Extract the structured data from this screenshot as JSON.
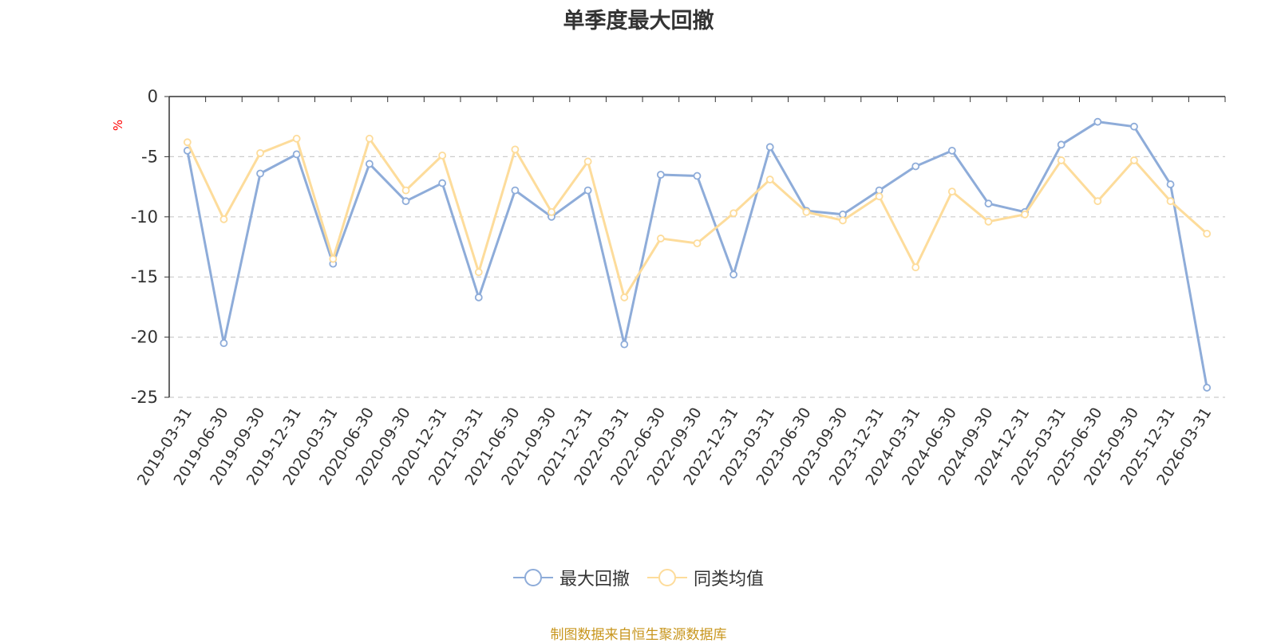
{
  "chart_data": {
    "type": "line",
    "title": "单季度最大回撤",
    "unit_label": "%",
    "ylim": [
      -25,
      0
    ],
    "y_ticks": [
      0,
      -5,
      -10,
      -15,
      -20,
      -25
    ],
    "grid": "horizontal-dashed",
    "legend_position": "bottom-center",
    "categories": [
      "2019-03-31",
      "2019-06-30",
      "2019-09-30",
      "2019-12-31",
      "2020-03-31",
      "2020-06-30",
      "2020-09-30",
      "2020-12-31",
      "2021-03-31",
      "2021-06-30",
      "2021-09-30",
      "2021-12-31",
      "2022-03-31",
      "2022-06-30",
      "2022-09-30",
      "2022-12-31",
      "2023-03-31",
      "2023-06-30",
      "2023-09-30",
      "2023-12-31",
      "2024-03-31",
      "2024-06-30",
      "2024-09-30",
      "2024-12-31",
      "2025-03-31",
      "2025-06-30",
      "2025-09-30",
      "2025-12-31",
      "2026-03-31"
    ],
    "series": [
      {
        "name": "最大回撤",
        "color": "#8eacd9",
        "values": [
          -4.5,
          -20.5,
          -6.4,
          -4.8,
          -13.9,
          -5.6,
          -8.7,
          -7.2,
          -16.7,
          -7.8,
          -10.0,
          -7.8,
          -20.6,
          -6.5,
          -6.6,
          -14.8,
          -4.2,
          -9.5,
          -9.8,
          -7.8,
          -5.8,
          -4.5,
          -8.9,
          -9.6,
          -4.0,
          -2.1,
          -2.5,
          -7.3,
          -24.2
        ]
      },
      {
        "name": "同类均值",
        "color": "#fddc9b",
        "values": [
          -3.8,
          -10.2,
          -4.7,
          -3.5,
          -13.5,
          -3.5,
          -7.8,
          -4.9,
          -14.6,
          -4.4,
          -9.6,
          -5.4,
          -16.7,
          -11.8,
          -12.2,
          -9.7,
          -6.9,
          -9.6,
          -10.3,
          -8.3,
          -14.2,
          -7.9,
          -10.4,
          -9.8,
          -5.3,
          -8.7,
          -5.3,
          -8.7,
          -11.4
        ]
      }
    ]
  },
  "source_note": "制图数据来自恒生聚源数据库"
}
